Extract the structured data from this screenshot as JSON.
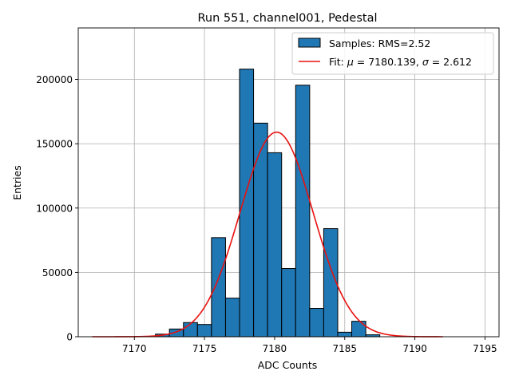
{
  "chart_data": {
    "type": "histogram",
    "title": "Run 551, channel001, Pedestal",
    "xlabel": "ADC Counts",
    "ylabel": "Entries",
    "xlim": [
      7166,
      7196
    ],
    "ylim": [
      0,
      240000
    ],
    "xticks": [
      7170,
      7175,
      7180,
      7185,
      7190,
      7195
    ],
    "yticks": [
      0,
      50000,
      100000,
      150000,
      200000
    ],
    "grid": true,
    "legend_position": "top-right",
    "legend": {
      "hist_label": "Samples: RMS=2.52",
      "fit_prefix": "Fit: ",
      "fit_mu_symbol": "μ",
      "fit_mu_value": " = 7180.139, ",
      "fit_sigma_symbol": "σ",
      "fit_sigma_value": " = 2.612"
    },
    "bin_width": 1,
    "bins": [
      {
        "x": 7172,
        "value": 2000
      },
      {
        "x": 7173,
        "value": 6000
      },
      {
        "x": 7174,
        "value": 11000
      },
      {
        "x": 7175,
        "value": 9500
      },
      {
        "x": 7176,
        "value": 77000
      },
      {
        "x": 7177,
        "value": 30000
      },
      {
        "x": 7178,
        "value": 208000
      },
      {
        "x": 7179,
        "value": 166000
      },
      {
        "x": 7180,
        "value": 143000
      },
      {
        "x": 7181,
        "value": 53000
      },
      {
        "x": 7182,
        "value": 195500
      },
      {
        "x": 7183,
        "value": 22000
      },
      {
        "x": 7184,
        "value": 84000
      },
      {
        "x": 7185,
        "value": 3500
      },
      {
        "x": 7186,
        "value": 12000
      },
      {
        "x": 7187,
        "value": 1500
      }
    ],
    "fit": {
      "function": "gaussian",
      "mu": 7180.139,
      "sigma": 2.612,
      "amplitude": 159000,
      "x_range": [
        7167,
        7192
      ]
    },
    "colors": {
      "bar_fill": "#1f77b4",
      "bar_edge": "#000000",
      "fit_line": "#e8110f",
      "grid": "#b0b0b0"
    }
  }
}
